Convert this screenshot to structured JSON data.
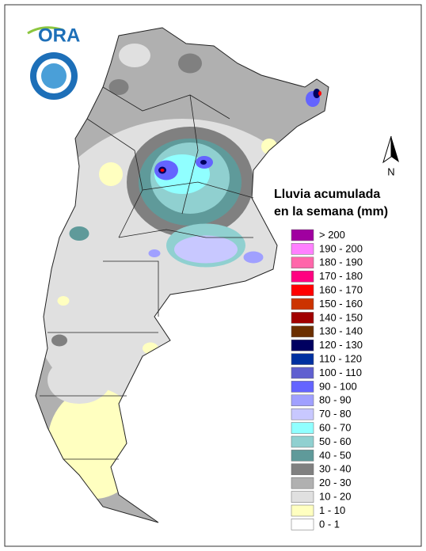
{
  "header": {
    "logo_text": "ORA",
    "north_label": "N"
  },
  "legend": {
    "title_lines": [
      "Lluvia acumulada",
      "en la semana (mm)"
    ],
    "items": [
      {
        "label": "> 200",
        "color": "#a000a0"
      },
      {
        "label": "190 - 200",
        "color": "#ff80ff"
      },
      {
        "label": "180 - 190",
        "color": "#ff66aa"
      },
      {
        "label": "170 - 180",
        "color": "#ff0080"
      },
      {
        "label": "160 - 170",
        "color": "#ff0000"
      },
      {
        "label": "150 - 160",
        "color": "#cc3300"
      },
      {
        "label": "140 - 150",
        "color": "#a00000"
      },
      {
        "label": "130 - 140",
        "color": "#6b2f00"
      },
      {
        "label": "120 - 130",
        "color": "#000060"
      },
      {
        "label": "110 - 120",
        "color": "#0030a0"
      },
      {
        "label": "100 - 110",
        "color": "#6060d0"
      },
      {
        "label": "90 - 100",
        "color": "#6464ff"
      },
      {
        "label": "80 - 90",
        "color": "#a0a0ff"
      },
      {
        "label": "70 - 80",
        "color": "#c8c8ff"
      },
      {
        "label": "60 - 70",
        "color": "#90ffff"
      },
      {
        "label": "50 - 60",
        "color": "#90d0d0"
      },
      {
        "label": "40 - 50",
        "color": "#5f9a9a"
      },
      {
        "label": "30 - 40",
        "color": "#808080"
      },
      {
        "label": "20 - 30",
        "color": "#b0b0b0"
      },
      {
        "label": "10 - 20",
        "color": "#e0e0e0"
      },
      {
        "label": "1 - 10",
        "color": "#ffffc0"
      },
      {
        "label": "0 - 1",
        "color": "#ffffff"
      }
    ]
  }
}
